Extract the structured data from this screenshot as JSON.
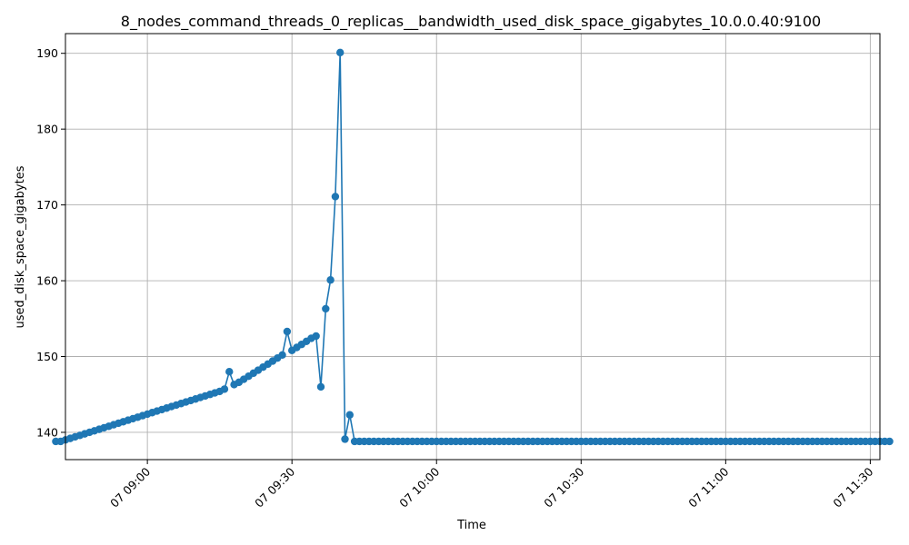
{
  "chart_data": {
    "type": "line",
    "title": "8_nodes_command_threads_0_replicas__bandwidth_used_disk_space_gigabytes_10.0.0.40:9100",
    "xlabel": "Time",
    "ylabel": "used_disk_space_gigabytes",
    "xlim": [
      "08:43",
      "11:32"
    ],
    "ylim": [
      136.4,
      192.6
    ],
    "x_ticks": [
      "09:00",
      "09:30",
      "10:00",
      "10:30",
      "11:00",
      "11:30"
    ],
    "x_tick_labels": [
      "07 09:00",
      "07 09:30",
      "07 10:00",
      "07 10:30",
      "07 11:00",
      "07 11:30"
    ],
    "y_ticks": [
      140,
      150,
      160,
      170,
      180,
      190
    ],
    "y_tick_labels": [
      "140",
      "150",
      "160",
      "170",
      "180",
      "190"
    ],
    "grid": true,
    "marker": "circle",
    "color": "#1f77b4",
    "series": [
      {
        "start_time": "08:41",
        "interval_minutes": 1,
        "values": [
          138.8,
          138.8,
          139.0,
          139.2,
          139.4,
          139.6,
          139.8,
          140.0,
          140.2,
          140.4,
          140.6,
          140.8,
          141.0,
          141.2,
          141.4,
          141.6,
          141.8,
          142.0,
          142.2,
          142.4,
          142.6,
          142.8,
          143.0,
          143.2,
          143.4,
          143.6,
          143.8,
          144.0,
          144.2,
          144.4,
          144.6,
          144.8,
          145.0,
          145.2,
          145.4,
          145.7,
          148.0,
          146.3,
          146.6,
          147.0,
          147.4,
          147.8,
          148.2,
          148.6,
          149.0,
          149.4,
          149.8,
          150.2,
          153.3,
          150.8,
          151.2,
          151.6,
          152.0,
          152.4,
          152.7,
          146.0,
          156.3,
          160.1,
          171.1,
          190.1,
          139.1,
          142.3,
          138.8,
          138.8,
          138.8,
          138.8,
          138.8,
          138.8,
          138.8,
          138.8,
          138.8,
          138.8,
          138.8,
          138.8,
          138.8,
          138.8,
          138.8,
          138.8,
          138.8,
          138.8,
          138.8,
          138.8,
          138.8,
          138.8,
          138.8,
          138.8,
          138.8,
          138.8,
          138.8,
          138.8,
          138.8,
          138.8,
          138.8,
          138.8,
          138.8,
          138.8,
          138.8,
          138.8,
          138.8,
          138.8,
          138.8,
          138.8,
          138.8,
          138.8,
          138.8,
          138.8,
          138.8,
          138.8,
          138.8,
          138.8,
          138.8,
          138.8,
          138.8,
          138.8,
          138.8,
          138.8,
          138.8,
          138.8,
          138.8,
          138.8,
          138.8,
          138.8,
          138.8,
          138.8,
          138.8,
          138.8,
          138.8,
          138.8,
          138.8,
          138.8,
          138.8,
          138.8,
          138.8,
          138.8,
          138.8,
          138.8,
          138.8,
          138.8,
          138.8,
          138.8,
          138.8,
          138.8,
          138.8,
          138.8,
          138.8,
          138.8,
          138.8,
          138.8,
          138.8,
          138.8,
          138.8,
          138.8,
          138.8,
          138.8,
          138.8,
          138.8,
          138.8,
          138.8,
          138.8,
          138.8,
          138.8,
          138.8,
          138.8,
          138.8,
          138.8,
          138.8,
          138.8,
          138.8,
          138.8,
          138.8,
          138.8,
          138.8,
          138.8,
          138.8
        ]
      }
    ]
  }
}
